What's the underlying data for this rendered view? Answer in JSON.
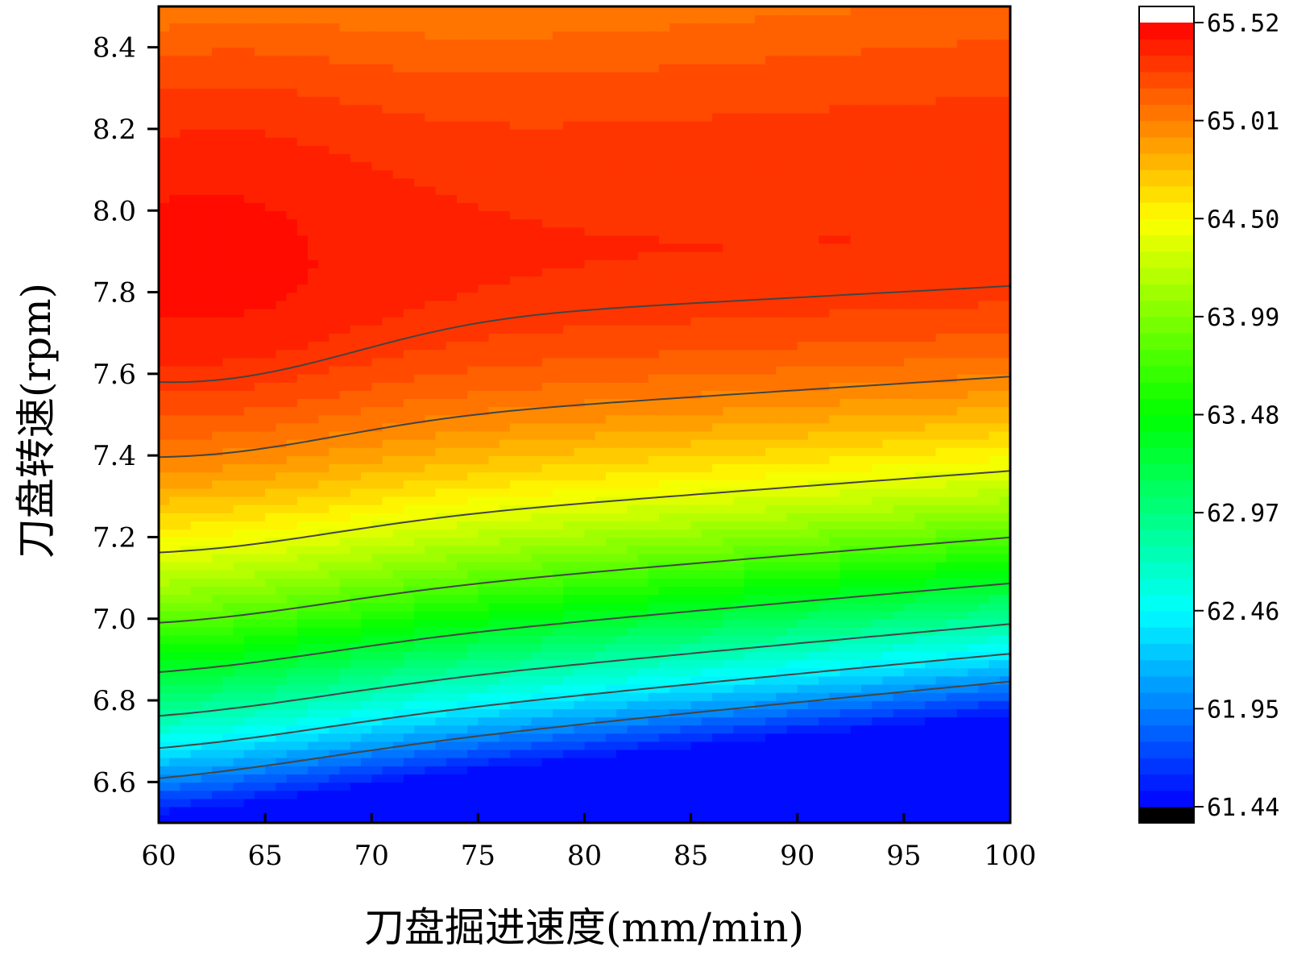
{
  "chart_data": {
    "type": "heatmap",
    "subtype": "filled-contour",
    "xlabel": "刀盘掘进速度(mm/min)",
    "ylabel": "刀盘转速(rpm)",
    "xlim": [
      60,
      100
    ],
    "ylim": [
      6.5,
      8.5
    ],
    "xticks": [
      "60",
      "65",
      "70",
      "75",
      "80",
      "85",
      "90",
      "95",
      "100"
    ],
    "yticks": [
      "6.6",
      "6.8",
      "7.0",
      "7.2",
      "7.4",
      "7.6",
      "7.8",
      "8.0",
      "8.2",
      "8.4"
    ],
    "colorbar": {
      "min": 61.44,
      "max": 65.52,
      "labels": [
        "65.52",
        "65.01",
        "64.50",
        "63.99",
        "63.48",
        "62.97",
        "62.46",
        "61.95",
        "61.44"
      ],
      "colormap": [
        "#0000ff",
        "#00ffff",
        "#00ff00",
        "#ffff00",
        "#ff0000"
      ],
      "under_color": "#000000",
      "over_color": "#ffffff"
    },
    "grid": false,
    "description_values": {
      "peak_region": {
        "x": [
          60,
          71
        ],
        "y": [
          7.7,
          8.1
        ],
        "z": 65.4
      },
      "minimum_region": {
        "x": [
          60,
          100
        ],
        "y": 6.5,
        "z": 61.9
      }
    }
  }
}
